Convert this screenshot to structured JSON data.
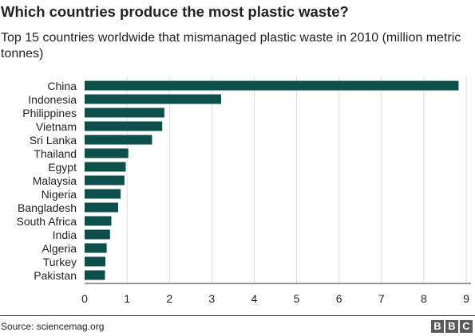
{
  "title": "Which countries produce the most plastic waste?",
  "subtitle": "Top 15 countries worldwide that mismanaged plastic waste in 2010 (million metric tonnes)",
  "source": "Source: sciencemag.org",
  "logo": [
    "B",
    "B",
    "C"
  ],
  "colors": {
    "bar": "#0d4f4b",
    "grid": "#dddddd",
    "axis": "#333333",
    "text": "#222222"
  },
  "chart_data": {
    "type": "bar",
    "orientation": "horizontal",
    "title": "Which countries produce the most plastic waste?",
    "subtitle": "Top 15 countries worldwide that mismanaged plastic waste in 2010 (million metric tonnes)",
    "categories": [
      "China",
      "Indonesia",
      "Philippines",
      "Vietnam",
      "Sri Lanka",
      "Thailand",
      "Egypt",
      "Malaysia",
      "Nigeria",
      "Bangladesh",
      "South Africa",
      "India",
      "Algeria",
      "Turkey",
      "Pakistan"
    ],
    "values": [
      8.82,
      3.22,
      1.88,
      1.83,
      1.59,
      1.03,
      0.97,
      0.94,
      0.85,
      0.79,
      0.63,
      0.6,
      0.52,
      0.49,
      0.48
    ],
    "xlim": [
      0,
      9
    ],
    "xticks": [
      0,
      1,
      2,
      3,
      4,
      5,
      6,
      7,
      8,
      9
    ],
    "xlabel": "",
    "ylabel": "",
    "grid": true
  }
}
